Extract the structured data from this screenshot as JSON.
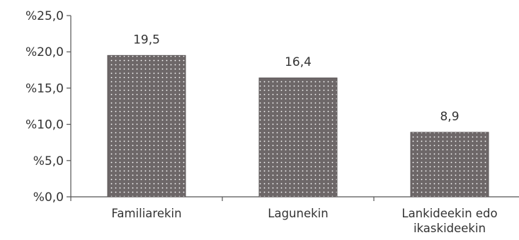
{
  "chart_data": {
    "type": "bar",
    "categories": [
      [
        "Familiarekin"
      ],
      [
        "Lagunekin"
      ],
      [
        "Lankideekin edo",
        "ikaskideekin"
      ]
    ],
    "values": [
      19.5,
      16.4,
      8.9
    ],
    "data_labels": [
      "19,5",
      "16,4",
      "8,9"
    ],
    "y_ticks": [
      {
        "value": 0,
        "label": "%0,0"
      },
      {
        "value": 5,
        "label": "%5,0"
      },
      {
        "value": 10,
        "label": "%10,0"
      },
      {
        "value": 15,
        "label": "%15,0"
      },
      {
        "value": 20,
        "label": "%20,0"
      },
      {
        "value": 25,
        "label": "%25,0"
      }
    ],
    "ylim": [
      0,
      25
    ],
    "grid": false,
    "legend": "none",
    "bar_color": "#6d6768",
    "bar_dot_color": "#ffffff",
    "axis_color": "#555555"
  }
}
